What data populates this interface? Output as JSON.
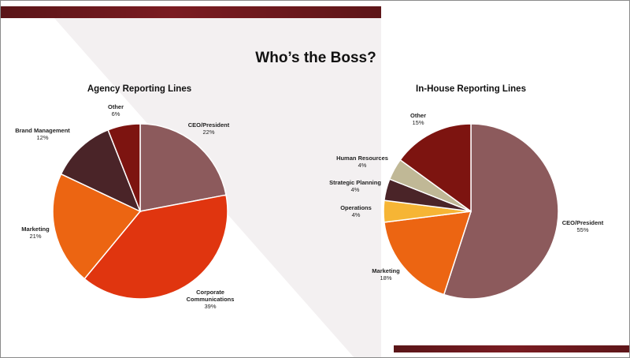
{
  "slide": {
    "title": "Who’s the Boss?"
  },
  "chart_data": [
    {
      "type": "pie",
      "title": "Agency Reporting Lines",
      "slices": [
        {
          "label": "CEO/President",
          "value": 22,
          "display": "22%",
          "color": "#8c5a5c"
        },
        {
          "label": "Corporate Communications",
          "value": 39,
          "display": "39%",
          "color": "#e0350f"
        },
        {
          "label": "Marketing",
          "value": 21,
          "display": "21%",
          "color": "#ec6512"
        },
        {
          "label": "Brand Management",
          "value": 12,
          "display": "12%",
          "color": "#4a2428"
        },
        {
          "label": "Other",
          "value": 6,
          "display": "6%",
          "color": "#7d1410"
        }
      ]
    },
    {
      "type": "pie",
      "title": "In-House Reporting Lines",
      "slices": [
        {
          "label": "CEO/President",
          "value": 55,
          "display": "55%",
          "color": "#8c5a5c"
        },
        {
          "label": "Marketing",
          "value": 18,
          "display": "18%",
          "color": "#ec6512"
        },
        {
          "label": "Operations",
          "value": 4,
          "display": "4%",
          "color": "#f6b535"
        },
        {
          "label": "Strategic Planning",
          "value": 4,
          "display": "4%",
          "color": "#4a2428"
        },
        {
          "label": "Human Resources",
          "value": 4,
          "display": "4%",
          "color": "#c0b896"
        },
        {
          "label": "Other",
          "value": 15,
          "display": "15%",
          "color": "#7d1410"
        }
      ]
    }
  ],
  "theme": {
    "accent_bar": "#6b1a1e",
    "background_shade": "#f3f0f1"
  }
}
